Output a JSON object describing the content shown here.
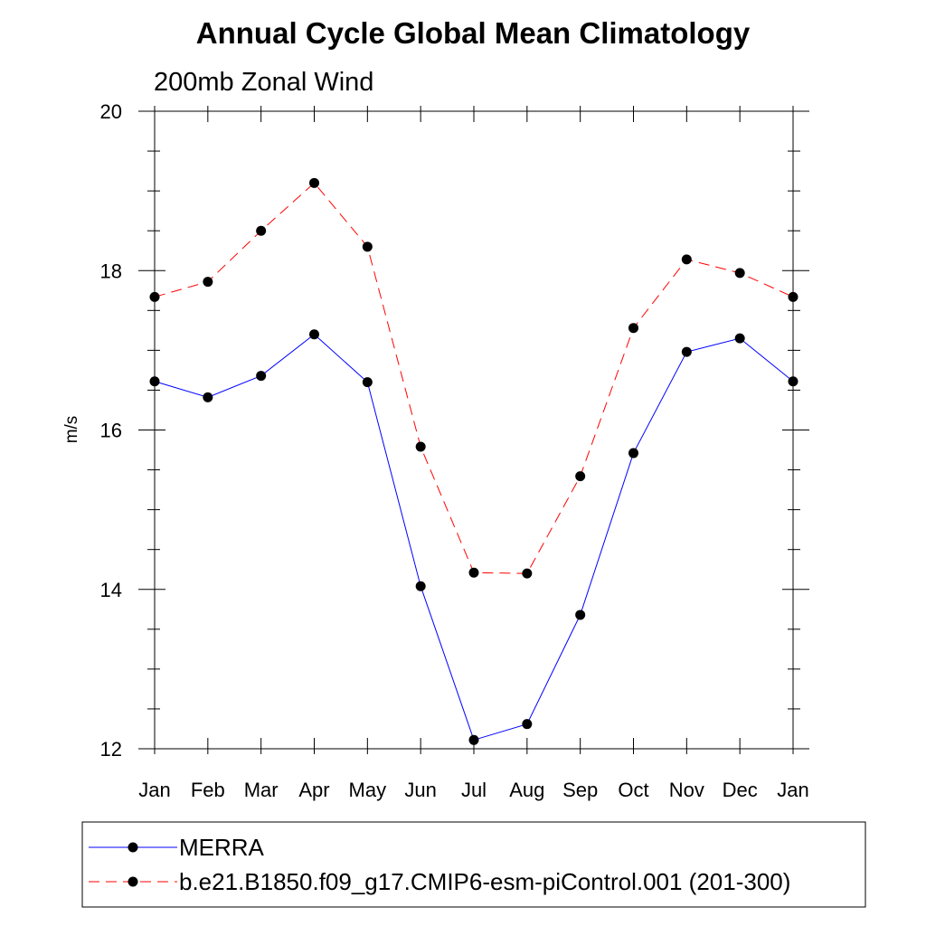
{
  "chart_data": {
    "type": "line",
    "title": "Annual Cycle Global Mean Climatology",
    "subtitle": "200mb Zonal Wind",
    "ylabel": "m/s",
    "xlabel": "",
    "categories": [
      "Jan",
      "Feb",
      "Mar",
      "Apr",
      "May",
      "Jun",
      "Jul",
      "Aug",
      "Sep",
      "Oct",
      "Nov",
      "Dec",
      "Jan"
    ],
    "ylim": [
      12,
      20
    ],
    "yticks": [
      12,
      14,
      16,
      18,
      20
    ],
    "series": [
      {
        "name": "MERRA",
        "color": "#0000ff",
        "dash": "solid",
        "values": [
          16.61,
          16.41,
          16.68,
          17.2,
          16.6,
          14.04,
          12.11,
          12.31,
          13.68,
          15.71,
          16.98,
          17.15,
          16.61
        ]
      },
      {
        "name": "b.e21.B1850.f09_g17.CMIP6-esm-piControl.001 (201-300)",
        "color": "#ff0000",
        "dash": "dashed",
        "values": [
          17.67,
          17.86,
          18.5,
          19.1,
          18.3,
          15.79,
          14.21,
          14.2,
          15.42,
          17.28,
          18.14,
          17.97,
          17.67
        ]
      }
    ],
    "legend_position": "bottom",
    "grid": false
  }
}
